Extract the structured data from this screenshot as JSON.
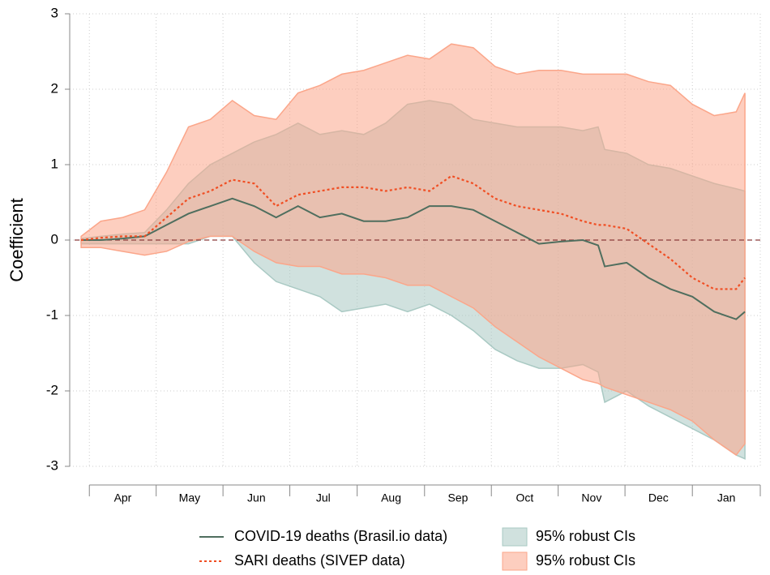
{
  "chart_data": {
    "type": "line",
    "y_label": "Coefficient",
    "x": [
      -4,
      5,
      15,
      25,
      35,
      45,
      55,
      65,
      75,
      85,
      95,
      105,
      115,
      125,
      135,
      145,
      155,
      165,
      175,
      185,
      195,
      205,
      215,
      225,
      232,
      235,
      245,
      255,
      265,
      275,
      285,
      295,
      299
    ],
    "xlim": [
      -7,
      306
    ],
    "xticks": [
      {
        "value": 15,
        "label": "Apr"
      },
      {
        "value": 45.5,
        "label": "May"
      },
      {
        "value": 76,
        "label": "Jun"
      },
      {
        "value": 106.5,
        "label": "Jul"
      },
      {
        "value": 137.5,
        "label": "Aug"
      },
      {
        "value": 168,
        "label": "Sep"
      },
      {
        "value": 198.5,
        "label": "Oct"
      },
      {
        "value": 229,
        "label": "Nov"
      },
      {
        "value": 259.5,
        "label": "Dec"
      },
      {
        "value": 290.5,
        "label": "Jan"
      }
    ],
    "ylim": [
      -3,
      3
    ],
    "yticks": [
      -3,
      -2,
      -1,
      0,
      1,
      2,
      3
    ],
    "grid": true,
    "refline": 0,
    "series": [
      {
        "name": "COVID-19 deaths (Brasil.io data)",
        "color": "#4f6e5e",
        "dash": false,
        "values": [
          0,
          0,
          0.02,
          0.05,
          0.2,
          0.35,
          0.45,
          0.55,
          0.45,
          0.3,
          0.45,
          0.3,
          0.35,
          0.25,
          0.25,
          0.3,
          0.45,
          0.45,
          0.4,
          0.25,
          0.1,
          -0.05,
          -0.02,
          0,
          -0.07,
          -0.35,
          -0.3,
          -0.5,
          -0.65,
          -0.75,
          -0.95,
          -1.05,
          -0.95
        ],
        "ci": {
          "name": "95% robust CIs",
          "color": "#a9c9c3",
          "upper": [
            0.02,
            0.05,
            0.08,
            0.1,
            0.4,
            0.75,
            1.0,
            1.15,
            1.3,
            1.4,
            1.55,
            1.4,
            1.45,
            1.4,
            1.55,
            1.8,
            1.85,
            1.8,
            1.6,
            1.55,
            1.5,
            1.5,
            1.5,
            1.45,
            1.5,
            1.2,
            1.15,
            1.0,
            0.95,
            0.85,
            0.75,
            0.68,
            0.65
          ],
          "lower": [
            -0.05,
            -0.05,
            -0.05,
            -0.05,
            -0.05,
            -0.05,
            0.05,
            0.05,
            -0.3,
            -0.55,
            -0.65,
            -0.75,
            -0.95,
            -0.9,
            -0.85,
            -0.95,
            -0.85,
            -1.0,
            -1.2,
            -1.45,
            -1.6,
            -1.7,
            -1.7,
            -1.65,
            -1.75,
            -2.15,
            -2.0,
            -2.2,
            -2.35,
            -2.5,
            -2.65,
            -2.85,
            -2.9
          ]
        }
      },
      {
        "name": "SARI deaths (SIVEP data)",
        "color": "#f04e23",
        "dash": true,
        "values": [
          0,
          0.03,
          0.05,
          0.05,
          0.3,
          0.55,
          0.65,
          0.8,
          0.75,
          0.45,
          0.6,
          0.65,
          0.7,
          0.7,
          0.65,
          0.7,
          0.65,
          0.85,
          0.75,
          0.55,
          0.45,
          0.4,
          0.35,
          0.25,
          0.2,
          0.2,
          0.15,
          -0.05,
          -0.25,
          -0.5,
          -0.65,
          -0.65,
          -0.5
        ],
        "ci": {
          "name": "95% robust CIs",
          "color": "#fba68a",
          "upper": [
            0.05,
            0.25,
            0.3,
            0.4,
            0.9,
            1.5,
            1.6,
            1.85,
            1.65,
            1.6,
            1.95,
            2.05,
            2.2,
            2.25,
            2.35,
            2.45,
            2.4,
            2.6,
            2.55,
            2.3,
            2.2,
            2.25,
            2.25,
            2.2,
            2.2,
            2.2,
            2.2,
            2.1,
            2.05,
            1.8,
            1.65,
            1.7,
            1.95
          ],
          "lower": [
            -0.1,
            -0.1,
            -0.15,
            -0.2,
            -0.15,
            -0.02,
            0.05,
            0.05,
            -0.15,
            -0.3,
            -0.35,
            -0.35,
            -0.45,
            -0.45,
            -0.5,
            -0.6,
            -0.6,
            -0.75,
            -0.9,
            -1.15,
            -1.35,
            -1.55,
            -1.7,
            -1.85,
            -1.9,
            -1.95,
            -2.05,
            -2.15,
            -2.25,
            -2.4,
            -2.65,
            -2.85,
            -2.7
          ]
        }
      }
    ]
  }
}
